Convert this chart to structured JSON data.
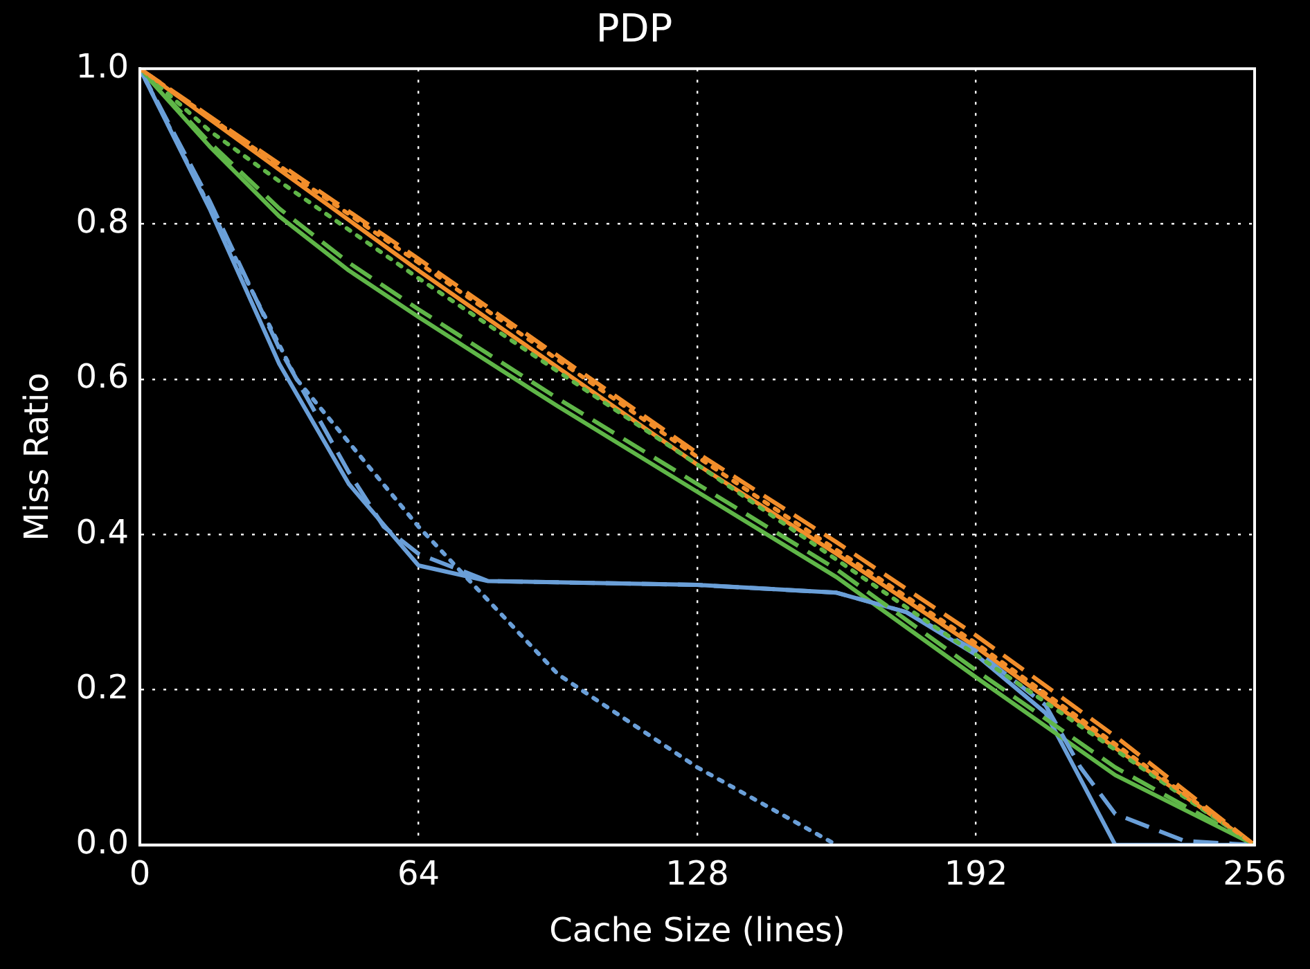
{
  "chart_data": {
    "type": "line",
    "title": "PDP",
    "xlabel": "Cache Size (lines)",
    "ylabel": "Miss Ratio",
    "xlim": [
      0,
      256
    ],
    "xticks": [
      0,
      64,
      128,
      192,
      256
    ],
    "ylim": [
      0,
      1
    ],
    "yticks": [
      {
        "value": 0,
        "label": "0.0"
      },
      {
        "value": 0.2,
        "label": "0.2"
      },
      {
        "value": 0.4,
        "label": "0.4"
      },
      {
        "value": 0.6,
        "label": "0.6"
      },
      {
        "value": 0.8,
        "label": "0.8"
      },
      {
        "value": 1,
        "label": "1.0"
      }
    ],
    "grid": true,
    "legend": false,
    "marker": "none",
    "series": [
      {
        "color": "#f28e2b",
        "line_style": "solid",
        "x": [
          0,
          64,
          128,
          160,
          192,
          224,
          256
        ],
        "values": [
          1,
          0.74,
          0.49,
          0.375,
          0.255,
          0.125,
          0
        ]
      },
      {
        "color": "#f28e2b",
        "line_style": "dashed",
        "x": [
          0,
          64,
          128,
          160,
          192,
          224,
          256
        ],
        "values": [
          1,
          0.755,
          0.505,
          0.39,
          0.27,
          0.14,
          0
        ]
      },
      {
        "color": "#f28e2b",
        "line_style": "dotted",
        "x": [
          0,
          64,
          128,
          160,
          192,
          224,
          256
        ],
        "values": [
          1,
          0.75,
          0.5,
          0.38,
          0.26,
          0.13,
          0
        ]
      },
      {
        "color": "#5fb648",
        "line_style": "solid",
        "x": [
          0,
          16,
          32,
          48,
          64,
          96,
          128,
          160,
          192,
          224,
          256
        ],
        "values": [
          1,
          0.9,
          0.81,
          0.74,
          0.68,
          0.565,
          0.455,
          0.345,
          0.216,
          0.09,
          0
        ]
      },
      {
        "color": "#5fb648",
        "line_style": "dashed",
        "x": [
          0,
          16,
          32,
          48,
          64,
          96,
          128,
          160,
          192,
          224,
          256
        ],
        "values": [
          1,
          0.905,
          0.82,
          0.75,
          0.69,
          0.575,
          0.465,
          0.355,
          0.225,
          0.1,
          0
        ]
      },
      {
        "color": "#5fb648",
        "line_style": "dotted",
        "x": [
          0,
          16,
          32,
          64,
          128,
          192,
          256
        ],
        "values": [
          1,
          0.92,
          0.855,
          0.73,
          0.49,
          0.245,
          0
        ]
      },
      {
        "color": "#6a9fd8",
        "line_style": "solid",
        "x": [
          0,
          16,
          32,
          48,
          64,
          80,
          128,
          160,
          176,
          192,
          208,
          224,
          256
        ],
        "values": [
          1,
          0.82,
          0.62,
          0.465,
          0.36,
          0.34,
          0.335,
          0.325,
          0.3,
          0.245,
          0.17,
          0,
          0
        ]
      },
      {
        "color": "#6a9fd8",
        "line_style": "dashed",
        "x": [
          0,
          16,
          32,
          48,
          56,
          64,
          80,
          128,
          160,
          176,
          192,
          208,
          216,
          224,
          240,
          256
        ],
        "values": [
          1,
          0.83,
          0.64,
          0.48,
          0.41,
          0.375,
          0.34,
          0.335,
          0.325,
          0.3,
          0.25,
          0.18,
          0.1,
          0.04,
          0.005,
          0
        ]
      },
      {
        "color": "#6a9fd8",
        "line_style": "dotted",
        "x": [
          0,
          18,
          36,
          64,
          96,
          128,
          160
        ],
        "values": [
          1,
          0.8,
          0.6,
          0.41,
          0.22,
          0.1,
          0
        ]
      }
    ]
  }
}
